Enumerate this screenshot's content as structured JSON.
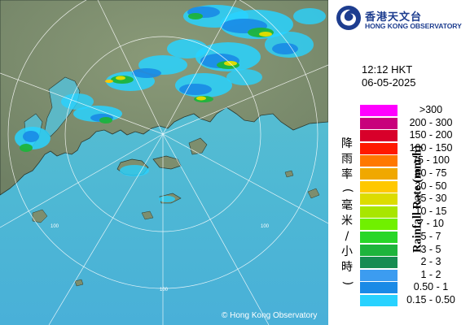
{
  "header": {
    "org_name_zh": "香港天文台",
    "org_name_en": "HONG KONG OBSERVATORY",
    "emblem_icon": "observatory-swirl-icon"
  },
  "timestamp": {
    "time": "12:12 HKT",
    "date": "06-05-2025"
  },
  "legend": {
    "title_zh": "降雨率(毫米/小時)",
    "title_en": "Rainfall Rate (mm/h)",
    "items": [
      {
        "label": ">300",
        "color": "#ff00ff"
      },
      {
        "label": "200 - 300",
        "color": "#c8007c"
      },
      {
        "label": "150 - 200",
        "color": "#d8002a"
      },
      {
        "label": "100 - 150",
        "color": "#ff1a00"
      },
      {
        "label": "75 - 100",
        "color": "#ff7800"
      },
      {
        "label": "50 - 75",
        "color": "#f0a800"
      },
      {
        "label": "30 - 50",
        "color": "#ffc800"
      },
      {
        "label": "15 - 30",
        "color": "#dcdc00"
      },
      {
        "label": "10 - 15",
        "color": "#a8e600"
      },
      {
        "label": "7 - 10",
        "color": "#70f000"
      },
      {
        "label": "5 - 7",
        "color": "#28d628"
      },
      {
        "label": "3 - 5",
        "color": "#1eb43c"
      },
      {
        "label": "2 - 3",
        "color": "#168c52"
      },
      {
        "label": "1 - 2",
        "color": "#3c9cf0"
      },
      {
        "label": "0.50 - 1",
        "color": "#1a8ae6"
      },
      {
        "label": "0.15 - 0.50",
        "color": "#28d2ff"
      }
    ]
  },
  "map": {
    "range_rings_km": [
      "100",
      "100",
      "100"
    ],
    "copyright": "© Hong Kong Observatory"
  }
}
